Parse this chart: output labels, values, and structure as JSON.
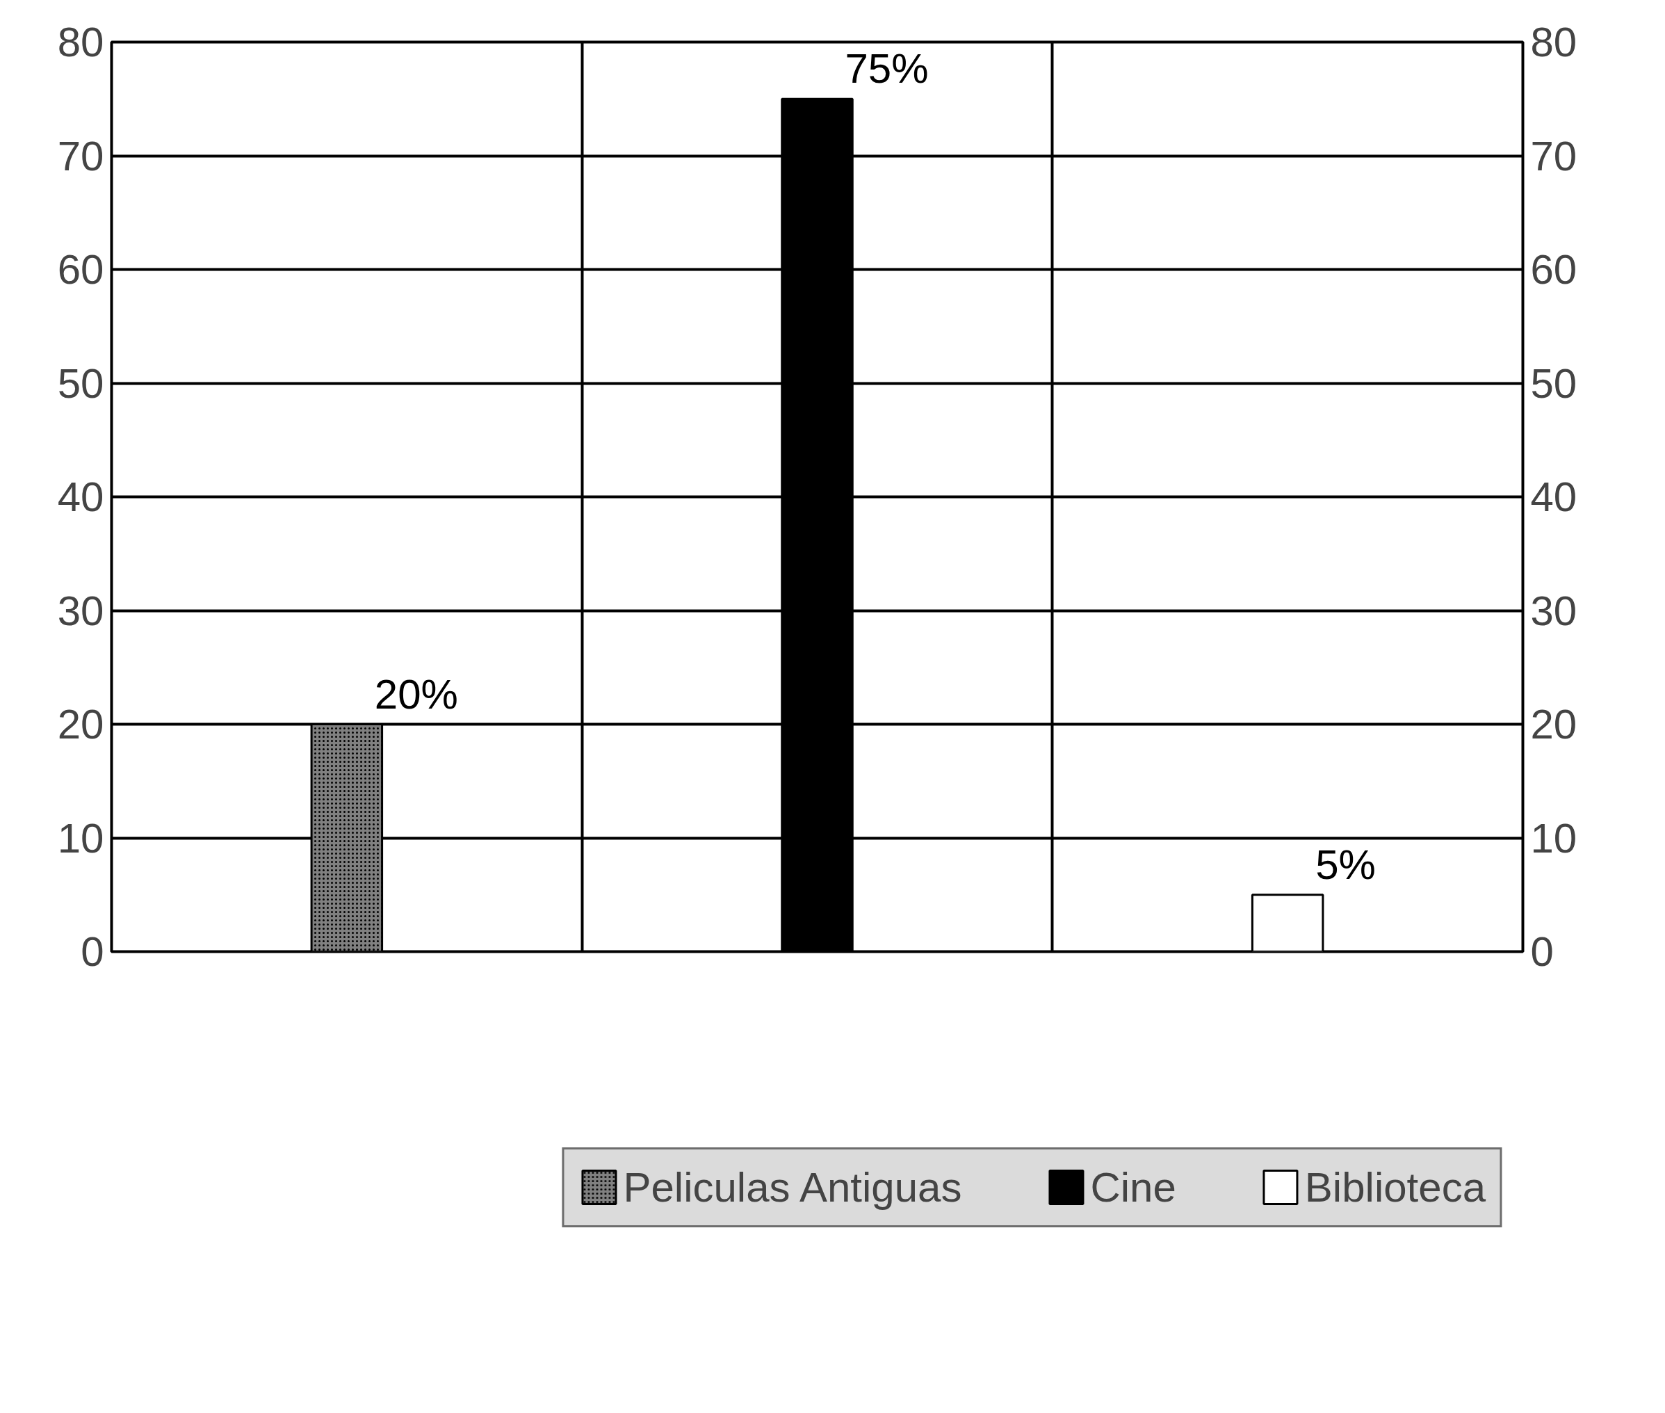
{
  "chart_data": {
    "type": "bar",
    "categories": [
      null,
      null,
      null
    ],
    "series": [
      {
        "name": "Peliculas Antiguas",
        "color": "#808080",
        "values": [
          20,
          null,
          null
        ],
        "value_labels": [
          "20%",
          null,
          null
        ]
      },
      {
        "name": "Cine",
        "color": "#000000",
        "values": [
          null,
          75,
          null
        ],
        "value_labels": [
          null,
          "75%",
          null
        ]
      },
      {
        "name": "Biblioteca",
        "color": "#ffffff",
        "values": [
          null,
          null,
          5
        ],
        "value_labels": [
          null,
          null,
          "5%"
        ]
      }
    ],
    "ylim": [
      0,
      80
    ],
    "yticks": [
      0,
      10,
      20,
      30,
      40,
      50,
      60,
      70,
      80
    ],
    "y2lim": [
      0,
      80
    ],
    "y2ticks": [
      0,
      10,
      20,
      30,
      40,
      50,
      60,
      70,
      80
    ],
    "grid": true,
    "legend": "bottom"
  }
}
